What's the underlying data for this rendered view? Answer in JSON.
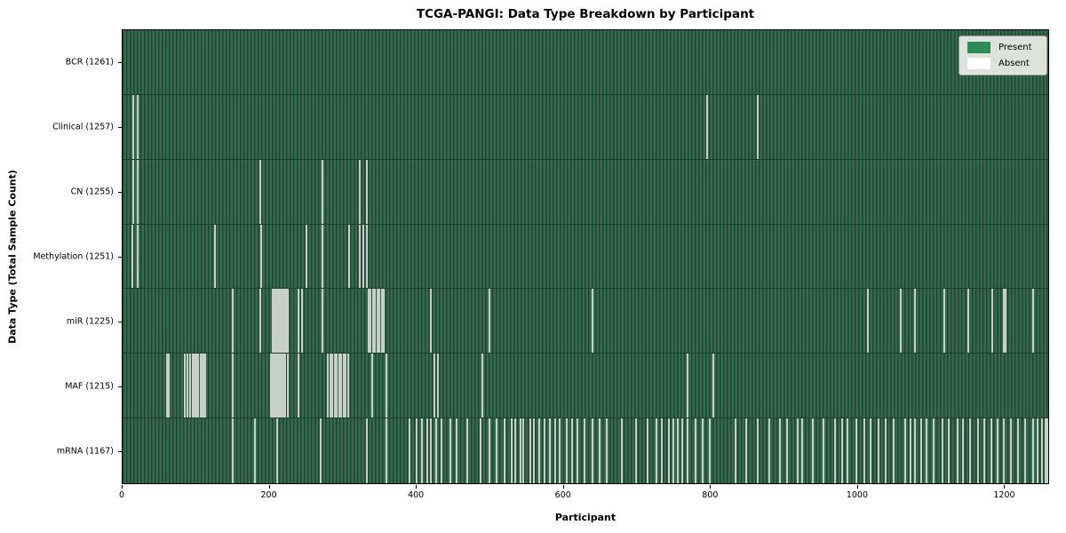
{
  "chart_data": {
    "type": "heatmap",
    "title": "TCGA-PANGI: Data Type Breakdown by Participant",
    "xlabel": "Participant",
    "ylabel": "Data Type (Total Sample Count)",
    "xlim": [
      0,
      1261
    ],
    "x_ticks": [
      0,
      200,
      400,
      600,
      800,
      1000,
      1200
    ],
    "grid": false,
    "legend": {
      "position": "upper right",
      "entries": [
        {
          "label": "Present",
          "color": "#2e8b57"
        },
        {
          "label": "Absent",
          "color": "#ffffff"
        }
      ]
    },
    "colors": {
      "bar_fill": "#336b4d",
      "bar_edge": "#234531",
      "absent_line": "#c7cfc6",
      "legend_present": "#2e8b57",
      "legend_absent": "#ffffff"
    },
    "n_participants": 1261,
    "rows": [
      {
        "name": "BCR",
        "label": "BCR (1261)",
        "total": 1261,
        "absent_count": 0,
        "absent_positions": []
      },
      {
        "name": "Clinical",
        "label": "Clinical (1257)",
        "total": 1257,
        "absent_count": 4,
        "absent_positions": [
          14,
          20,
          796,
          865
        ]
      },
      {
        "name": "CN",
        "label": "CN (1255)",
        "total": 1255,
        "absent_count": 6,
        "absent_positions": [
          14,
          20,
          187,
          272,
          323,
          333
        ]
      },
      {
        "name": "Methylation",
        "label": "Methylation (1251)",
        "total": 1251,
        "absent_count": 10,
        "absent_positions": [
          13,
          20,
          126,
          189,
          250,
          272,
          308,
          323,
          328,
          333
        ]
      },
      {
        "name": "miR",
        "label": "miR (1225)",
        "total": 1225,
        "absent_count": 36,
        "absent_positions": [
          150,
          187,
          205,
          207,
          209,
          211,
          213,
          215,
          217,
          219,
          221,
          223,
          225,
          240,
          245,
          272,
          335,
          338,
          341,
          344,
          347,
          350,
          353,
          356,
          420,
          500,
          640,
          1015,
          1060,
          1079,
          1120,
          1152,
          1185,
          1200,
          1203,
          1240
        ]
      },
      {
        "name": "MAF",
        "label": "MAF (1215)",
        "total": 1215,
        "absent_count": 46,
        "absent_positions": [
          60,
          63,
          85,
          88,
          92,
          95,
          98,
          100,
          103,
          106,
          108,
          110,
          111,
          112,
          113,
          150,
          202,
          204,
          206,
          208,
          210,
          212,
          214,
          216,
          218,
          220,
          222,
          225,
          240,
          280,
          283,
          286,
          289,
          292,
          295,
          298,
          301,
          304,
          307,
          340,
          360,
          425,
          430,
          490,
          770,
          805
        ]
      },
      {
        "name": "mRNA",
        "label": "mRNA (1167)",
        "total": 1167,
        "absent_count": 94,
        "absent_positions": [
          150,
          180,
          210,
          270,
          333,
          360,
          391,
          400,
          408,
          415,
          420,
          427,
          435,
          446,
          455,
          470,
          488,
          500,
          510,
          520,
          530,
          535,
          542,
          546,
          555,
          560,
          568,
          575,
          582,
          589,
          596,
          605,
          612,
          620,
          629,
          640,
          650,
          660,
          680,
          700,
          715,
          727,
          735,
          744,
          750,
          756,
          762,
          770,
          780,
          790,
          800,
          835,
          850,
          865,
          881,
          895,
          905,
          920,
          926,
          940,
          955,
          970,
          980,
          987,
          1000,
          1010,
          1019,
          1030,
          1040,
          1050,
          1066,
          1073,
          1080,
          1088,
          1095,
          1105,
          1117,
          1125,
          1137,
          1145,
          1155,
          1165,
          1174,
          1183,
          1192,
          1201,
          1210,
          1220,
          1230,
          1240,
          1247,
          1253,
          1257,
          1260
        ]
      }
    ]
  }
}
